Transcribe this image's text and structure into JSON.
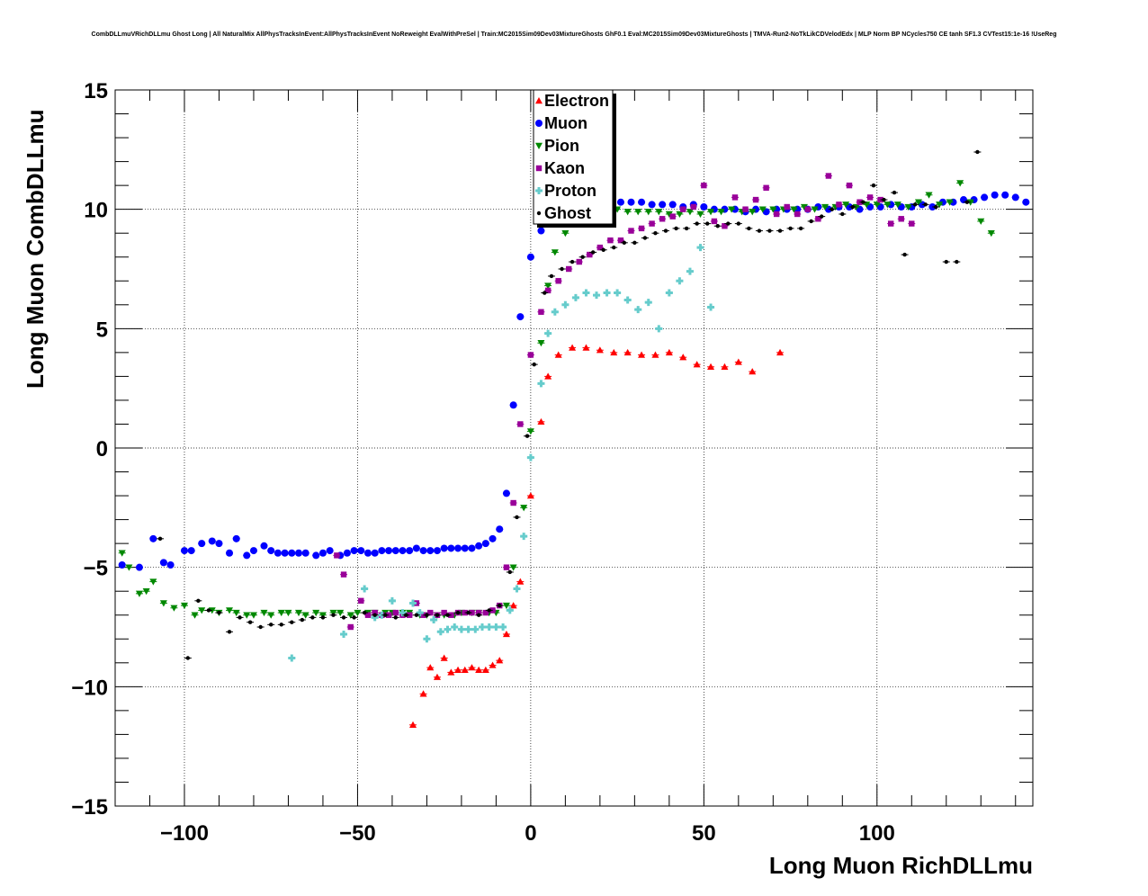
{
  "title": "CombDLLmuVRichDLLmu Ghost Long | All NaturalMix AllPhysTracksInEvent:AllPhysTracksInEvent NoReweight EvalWithPreSel | Train:MC2015Sim09Dev03MixtureGhosts GhF0.1 Eval:MC2015Sim09Dev03MixtureGhosts | TMVA-Run2-NoTkLikCDVelodEdx | MLP Norm BP NCycles750 CE tanh SF1.3 CVTest15:1e-16 !UseReg",
  "chart_data": {
    "type": "scatter",
    "xlabel": "Long Muon RichDLLmu",
    "ylabel": "Long Muon CombDLLmu",
    "xlim": [
      -120,
      145
    ],
    "ylim": [
      -15,
      15
    ],
    "xticks": [
      -100,
      -50,
      0,
      50,
      100
    ],
    "yticks": [
      -15,
      -10,
      -5,
      0,
      5,
      10,
      15
    ],
    "xtick_labels": [
      "−100",
      "−50",
      "0",
      "50",
      "100"
    ],
    "ytick_labels": [
      "−15",
      "−10",
      "−5",
      "0",
      "5",
      "10",
      "15"
    ],
    "grid": true,
    "legend_position": "top-center",
    "series": [
      {
        "name": "Electron",
        "color": "#ff0000",
        "marker": "triangle-up",
        "x": [
          -34,
          -31,
          -29,
          -27,
          -25,
          -23,
          -21,
          -19,
          -17,
          -15,
          -13,
          -11,
          -9,
          -7,
          -5,
          -3,
          0,
          3,
          5,
          8,
          12,
          16,
          20,
          24,
          28,
          32,
          36,
          40,
          44,
          48,
          52,
          56,
          60,
          64,
          72
        ],
        "y": [
          -11.6,
          -10.3,
          -9.2,
          -9.6,
          -8.8,
          -9.4,
          -9.3,
          -9.3,
          -9.2,
          -9.3,
          -9.3,
          -9.1,
          -8.9,
          -7.8,
          -6.6,
          -5.6,
          -2.0,
          1.1,
          3.0,
          3.9,
          4.2,
          4.2,
          4.1,
          4.0,
          4.0,
          3.9,
          3.9,
          4.0,
          3.8,
          3.5,
          3.4,
          3.4,
          3.6,
          3.2,
          4.0
        ]
      },
      {
        "name": "Muon",
        "color": "#0000ff",
        "marker": "circle",
        "x": [
          -118,
          -113,
          -109,
          -106,
          -104,
          -100,
          -98,
          -95,
          -92,
          -90,
          -87,
          -85,
          -82,
          -80,
          -77,
          -75,
          -73,
          -71,
          -69,
          -67,
          -65,
          -62,
          -60,
          -58,
          -55,
          -53,
          -51,
          -49,
          -47,
          -45,
          -43,
          -41,
          -39,
          -37,
          -35,
          -33,
          -31,
          -29,
          -27,
          -25,
          -23,
          -21,
          -19,
          -17,
          -15,
          -13,
          -11,
          -9,
          -7,
          -5,
          -3,
          0,
          3,
          5,
          8,
          11,
          14,
          17,
          20,
          23,
          26,
          29,
          32,
          35,
          38,
          41,
          44,
          47,
          50,
          53,
          56,
          59,
          62,
          65,
          68,
          71,
          74,
          77,
          80,
          83,
          86,
          89,
          92,
          95,
          98,
          101,
          104,
          107,
          110,
          113,
          116,
          119,
          122,
          125,
          128,
          131,
          134,
          137,
          140,
          143
        ],
        "y": [
          -4.9,
          -5.0,
          -3.8,
          -4.8,
          -4.9,
          -4.3,
          -4.3,
          -4.0,
          -3.9,
          -4.0,
          -4.4,
          -3.8,
          -4.5,
          -4.3,
          -4.1,
          -4.3,
          -4.4,
          -4.4,
          -4.4,
          -4.4,
          -4.4,
          -4.5,
          -4.4,
          -4.3,
          -4.5,
          -4.4,
          -4.3,
          -4.3,
          -4.4,
          -4.4,
          -4.3,
          -4.3,
          -4.3,
          -4.3,
          -4.3,
          -4.2,
          -4.3,
          -4.3,
          -4.3,
          -4.2,
          -4.2,
          -4.2,
          -4.2,
          -4.2,
          -4.1,
          -4.0,
          -3.8,
          -3.4,
          -1.9,
          1.8,
          5.5,
          8.0,
          9.1,
          9.7,
          10.1,
          10.3,
          10.4,
          10.5,
          10.4,
          10.4,
          10.3,
          10.3,
          10.3,
          10.2,
          10.2,
          10.2,
          10.1,
          10.2,
          10.1,
          10.0,
          10.0,
          10.0,
          9.9,
          10.0,
          9.9,
          10.0,
          10.0,
          10.0,
          10.0,
          10.1,
          10.0,
          10.1,
          10.1,
          10.0,
          10.1,
          10.1,
          10.2,
          10.1,
          10.1,
          10.2,
          10.1,
          10.3,
          10.3,
          10.4,
          10.4,
          10.5,
          10.6,
          10.6,
          10.5,
          10.3
        ]
      },
      {
        "name": "Pion",
        "color": "#008800",
        "marker": "triangle-down",
        "x": [
          -118,
          -116,
          -113,
          -111,
          -109,
          -106,
          -103,
          -100,
          -97,
          -95,
          -92,
          -90,
          -87,
          -85,
          -82,
          -80,
          -77,
          -75,
          -72,
          -70,
          -67,
          -65,
          -62,
          -60,
          -57,
          -55,
          -52,
          -50,
          -47,
          -45,
          -42,
          -40,
          -37,
          -35,
          -32,
          -30,
          -27,
          -25,
          -22,
          -20,
          -17,
          -15,
          -12,
          -10,
          -7,
          -5,
          -2,
          0,
          3,
          5,
          7,
          10,
          13,
          16,
          19,
          22,
          25,
          28,
          31,
          34,
          37,
          40,
          43,
          46,
          49,
          52,
          55,
          58,
          61,
          64,
          67,
          70,
          73,
          76,
          79,
          82,
          85,
          88,
          91,
          94,
          97,
          100,
          103,
          106,
          109,
          112,
          115,
          118,
          121,
          124,
          127,
          130,
          133
        ],
        "y": [
          -4.4,
          -5.0,
          -6.1,
          -6.0,
          -5.6,
          -6.5,
          -6.7,
          -6.6,
          -7.0,
          -6.8,
          -6.8,
          -6.9,
          -6.8,
          -6.9,
          -7.0,
          -7.0,
          -6.9,
          -7.0,
          -6.9,
          -6.9,
          -6.9,
          -7.0,
          -6.9,
          -7.0,
          -6.9,
          -6.9,
          -7.0,
          -6.9,
          -6.9,
          -6.9,
          -6.9,
          -6.9,
          -6.9,
          -6.9,
          -7.0,
          -7.0,
          -7.0,
          -7.0,
          -7.0,
          -6.9,
          -6.9,
          -6.9,
          -6.9,
          -6.9,
          -6.6,
          -5.0,
          -2.5,
          0.7,
          4.4,
          6.8,
          8.2,
          9.0,
          9.5,
          9.8,
          9.9,
          10.0,
          10.0,
          9.9,
          9.9,
          9.9,
          9.9,
          9.8,
          9.8,
          9.9,
          9.8,
          9.9,
          9.9,
          10.0,
          9.9,
          9.9,
          10.0,
          10.0,
          10.0,
          10.0,
          10.1,
          10.0,
          10.1,
          10.1,
          10.2,
          10.1,
          10.2,
          10.2,
          10.2,
          10.2,
          10.1,
          10.3,
          10.6,
          10.2,
          10.3,
          11.1,
          10.3,
          9.5,
          9.0
        ]
      },
      {
        "name": "Kaon",
        "color": "#990099",
        "marker": "square",
        "x": [
          -56,
          -54,
          -52,
          -49,
          -47,
          -45,
          -43,
          -41,
          -39,
          -37,
          -35,
          -33,
          -31,
          -29,
          -27,
          -25,
          -23,
          -21,
          -19,
          -17,
          -15,
          -13,
          -11,
          -9,
          -7,
          -5,
          -3,
          0,
          3,
          5,
          8,
          11,
          14,
          17,
          20,
          23,
          26,
          29,
          32,
          35,
          38,
          41,
          44,
          47,
          50,
          53,
          56,
          59,
          62,
          65,
          68,
          71,
          74,
          77,
          80,
          83,
          86,
          89,
          92,
          95,
          98,
          101,
          104,
          107,
          110
        ],
        "y": [
          -4.5,
          -5.3,
          -7.5,
          -6.4,
          -7.0,
          -6.9,
          -7.0,
          -7.0,
          -6.9,
          -7.0,
          -7.0,
          -6.5,
          -7.0,
          -6.9,
          -7.0,
          -6.9,
          -7.0,
          -6.9,
          -6.9,
          -6.9,
          -6.9,
          -6.9,
          -6.8,
          -6.6,
          -5.0,
          -2.3,
          1.0,
          3.9,
          5.7,
          6.6,
          7.0,
          7.5,
          7.8,
          8.1,
          8.4,
          8.7,
          8.7,
          9.1,
          9.2,
          9.4,
          9.6,
          9.7,
          10.0,
          10.1,
          11.0,
          9.5,
          9.3,
          10.5,
          10.0,
          10.4,
          10.9,
          9.8,
          10.1,
          9.8,
          10.0,
          9.6,
          11.4,
          10.2,
          11.0,
          10.3,
          10.5,
          10.4,
          9.4,
          9.6,
          9.4
        ]
      },
      {
        "name": "Proton",
        "color": "#66cccc",
        "marker": "plus",
        "x": [
          -69,
          -54,
          -48,
          -45,
          -43,
          -40,
          -37,
          -34,
          -32,
          -30,
          -28,
          -26,
          -24,
          -22,
          -20,
          -18,
          -16,
          -14,
          -12,
          -10,
          -8,
          -6,
          -4,
          -2,
          0,
          3,
          5,
          7,
          10,
          13,
          16,
          19,
          22,
          25,
          28,
          31,
          34,
          37,
          40,
          43,
          46,
          49,
          52
        ],
        "y": [
          -8.8,
          -7.8,
          -5.9,
          -7.1,
          -7.0,
          -6.4,
          -6.9,
          -6.5,
          -6.9,
          -8.0,
          -7.2,
          -7.7,
          -7.6,
          -7.5,
          -7.6,
          -7.6,
          -7.6,
          -7.5,
          -7.5,
          -7.5,
          -7.5,
          -6.8,
          -5.9,
          -3.7,
          -0.4,
          2.7,
          4.8,
          5.7,
          6.0,
          6.3,
          6.5,
          6.4,
          6.5,
          6.5,
          6.2,
          5.8,
          6.1,
          5.0,
          6.5,
          7.0,
          7.4,
          8.4,
          5.9
        ]
      },
      {
        "name": "Ghost",
        "color": "#000000",
        "marker": "cross",
        "x": [
          -107,
          -99,
          -96,
          -93,
          -90,
          -87,
          -84,
          -81,
          -78,
          -75,
          -72,
          -69,
          -66,
          -63,
          -60,
          -57,
          -54,
          -51,
          -48,
          -45,
          -42,
          -39,
          -36,
          -33,
          -30,
          -27,
          -24,
          -21,
          -18,
          -15,
          -12,
          -9,
          -6,
          -4,
          -1,
          1,
          4,
          6,
          9,
          12,
          15,
          18,
          21,
          24,
          27,
          30,
          33,
          36,
          39,
          42,
          45,
          48,
          51,
          54,
          57,
          60,
          63,
          66,
          69,
          72,
          75,
          78,
          81,
          84,
          87,
          90,
          93,
          96,
          99,
          102,
          105,
          108,
          111,
          114,
          117,
          120,
          123,
          126,
          129
        ],
        "y": [
          -3.8,
          -8.8,
          -6.4,
          -6.8,
          -6.9,
          -7.7,
          -7.1,
          -7.3,
          -7.5,
          -7.4,
          -7.4,
          -7.3,
          -7.2,
          -7.1,
          -7.1,
          -7.0,
          -7.1,
          -7.1,
          -6.9,
          -7.0,
          -7.0,
          -7.1,
          -7.0,
          -7.0,
          -7.0,
          -7.0,
          -7.0,
          -6.9,
          -6.9,
          -7.0,
          -6.8,
          -6.6,
          -5.2,
          -2.9,
          0.5,
          3.5,
          6.5,
          7.2,
          7.5,
          7.8,
          8.0,
          8.2,
          8.3,
          8.4,
          8.6,
          8.6,
          8.8,
          9.0,
          9.1,
          9.2,
          9.2,
          9.4,
          9.4,
          9.3,
          9.4,
          9.4,
          9.2,
          9.1,
          9.1,
          9.1,
          9.2,
          9.2,
          9.5,
          9.7,
          10.0,
          9.8,
          10.1,
          10.3,
          11.0,
          10.4,
          10.7,
          8.1,
          10.2,
          10.2,
          10.1,
          7.8,
          7.8,
          10.3,
          12.4
        ]
      }
    ]
  }
}
